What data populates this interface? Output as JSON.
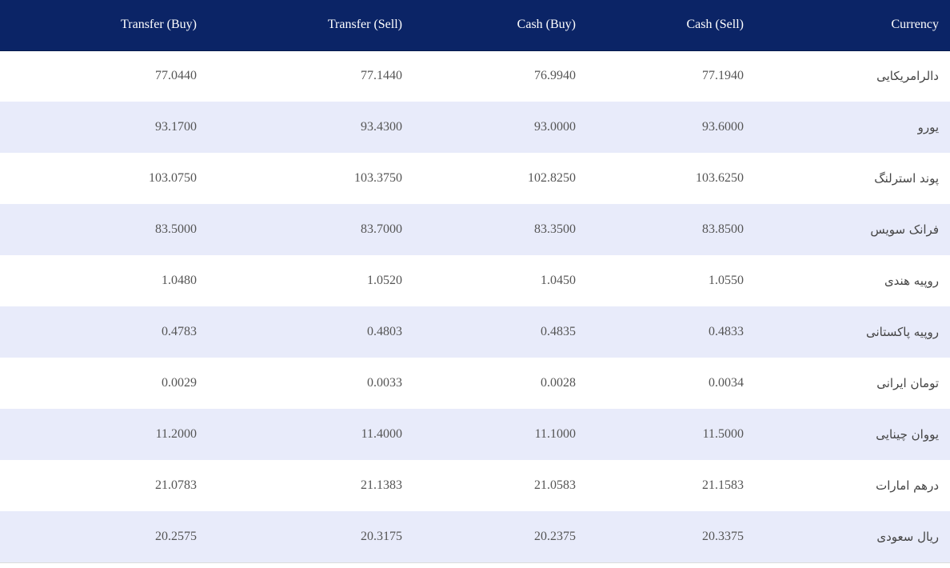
{
  "table": {
    "headers": {
      "transfer_buy": "Transfer (Buy)",
      "transfer_sell": "Transfer (Sell)",
      "cash_buy": "Cash (Buy)",
      "cash_sell": "Cash (Sell)",
      "currency": "Currency"
    },
    "rows": [
      {
        "transfer_buy": "77.0440",
        "transfer_sell": "77.1440",
        "cash_buy": "76.9940",
        "cash_sell": "77.1940",
        "currency": "دالرامریکایی"
      },
      {
        "transfer_buy": "93.1700",
        "transfer_sell": "93.4300",
        "cash_buy": "93.0000",
        "cash_sell": "93.6000",
        "currency": "یورو"
      },
      {
        "transfer_buy": "103.0750",
        "transfer_sell": "103.3750",
        "cash_buy": "102.8250",
        "cash_sell": "103.6250",
        "currency": "پوند استرلنگ"
      },
      {
        "transfer_buy": "83.5000",
        "transfer_sell": "83.7000",
        "cash_buy": "83.3500",
        "cash_sell": "83.8500",
        "currency": "فرانک سویس"
      },
      {
        "transfer_buy": "1.0480",
        "transfer_sell": "1.0520",
        "cash_buy": "1.0450",
        "cash_sell": "1.0550",
        "currency": "روپیه هندی"
      },
      {
        "transfer_buy": "0.4783",
        "transfer_sell": "0.4803",
        "cash_buy": "0.4835",
        "cash_sell": "0.4833",
        "currency": "روپیه پاکستانی"
      },
      {
        "transfer_buy": "0.0029",
        "transfer_sell": "0.0033",
        "cash_buy": "0.0028",
        "cash_sell": "0.0034",
        "currency": "تومان ایرانی"
      },
      {
        "transfer_buy": "11.2000",
        "transfer_sell": "11.4000",
        "cash_buy": "11.1000",
        "cash_sell": "11.5000",
        "currency": "یووان چینایی"
      },
      {
        "transfer_buy": "21.0783",
        "transfer_sell": "21.1383",
        "cash_buy": "21.0583",
        "cash_sell": "21.1583",
        "currency": "درهم امارات"
      },
      {
        "transfer_buy": "20.2575",
        "transfer_sell": "20.3175",
        "cash_buy": "20.2375",
        "cash_sell": "20.3375",
        "currency": "ریال سعودی"
      }
    ]
  },
  "colors": {
    "header_bg": "#0b2466",
    "striped_row_bg": "#e8ebfa"
  }
}
